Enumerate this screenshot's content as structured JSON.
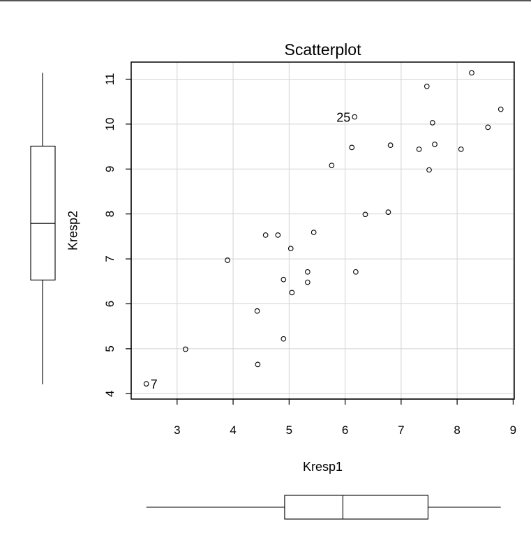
{
  "chart_data": {
    "type": "scatter",
    "title": "Scatterplot",
    "xlabel": "Kresp1",
    "ylabel": "Kresp2",
    "xlim": [
      2.2,
      9.0
    ],
    "ylim": [
      3.9,
      11.4
    ],
    "xticks": [
      "3",
      "4",
      "5",
      "6",
      "7",
      "8",
      "9"
    ],
    "yticks": [
      "4",
      "5",
      "6",
      "7",
      "8",
      "9",
      "10",
      "11"
    ],
    "grid": true,
    "marginal_boxplots": true,
    "x_boxplot": {
      "whisker_low": 2.45,
      "q1": 4.92,
      "median": 5.96,
      "q3": 7.48,
      "whisker_high": 8.78
    },
    "y_boxplot": {
      "whisker_low": 4.21,
      "q1": 6.53,
      "median": 7.79,
      "q3": 9.51,
      "whisker_high": 11.14
    },
    "points": [
      {
        "x": 2.45,
        "y": 4.22,
        "label": "7"
      },
      {
        "x": 3.15,
        "y": 4.99,
        "label": ""
      },
      {
        "x": 3.9,
        "y": 6.97,
        "label": ""
      },
      {
        "x": 4.43,
        "y": 5.84,
        "label": ""
      },
      {
        "x": 4.44,
        "y": 4.65,
        "label": ""
      },
      {
        "x": 4.58,
        "y": 7.53,
        "label": ""
      },
      {
        "x": 4.8,
        "y": 7.53,
        "label": ""
      },
      {
        "x": 4.9,
        "y": 6.54,
        "label": ""
      },
      {
        "x": 4.9,
        "y": 5.22,
        "label": ""
      },
      {
        "x": 5.03,
        "y": 7.23,
        "label": ""
      },
      {
        "x": 5.05,
        "y": 6.25,
        "label": ""
      },
      {
        "x": 5.33,
        "y": 6.71,
        "label": ""
      },
      {
        "x": 5.33,
        "y": 6.48,
        "label": ""
      },
      {
        "x": 5.44,
        "y": 7.59,
        "label": ""
      },
      {
        "x": 5.76,
        "y": 9.08,
        "label": ""
      },
      {
        "x": 6.12,
        "y": 9.48,
        "label": ""
      },
      {
        "x": 6.17,
        "y": 10.16,
        "label": "25"
      },
      {
        "x": 6.19,
        "y": 6.71,
        "label": ""
      },
      {
        "x": 6.36,
        "y": 7.99,
        "label": ""
      },
      {
        "x": 6.77,
        "y": 8.04,
        "label": ""
      },
      {
        "x": 6.81,
        "y": 9.53,
        "label": ""
      },
      {
        "x": 7.32,
        "y": 9.44,
        "label": ""
      },
      {
        "x": 7.46,
        "y": 10.84,
        "label": ""
      },
      {
        "x": 7.5,
        "y": 8.98,
        "label": ""
      },
      {
        "x": 7.56,
        "y": 10.03,
        "label": ""
      },
      {
        "x": 7.6,
        "y": 9.55,
        "label": ""
      },
      {
        "x": 8.07,
        "y": 9.44,
        "label": ""
      },
      {
        "x": 8.26,
        "y": 11.14,
        "label": ""
      },
      {
        "x": 8.55,
        "y": 9.93,
        "label": ""
      },
      {
        "x": 8.78,
        "y": 10.33,
        "label": ""
      }
    ]
  }
}
